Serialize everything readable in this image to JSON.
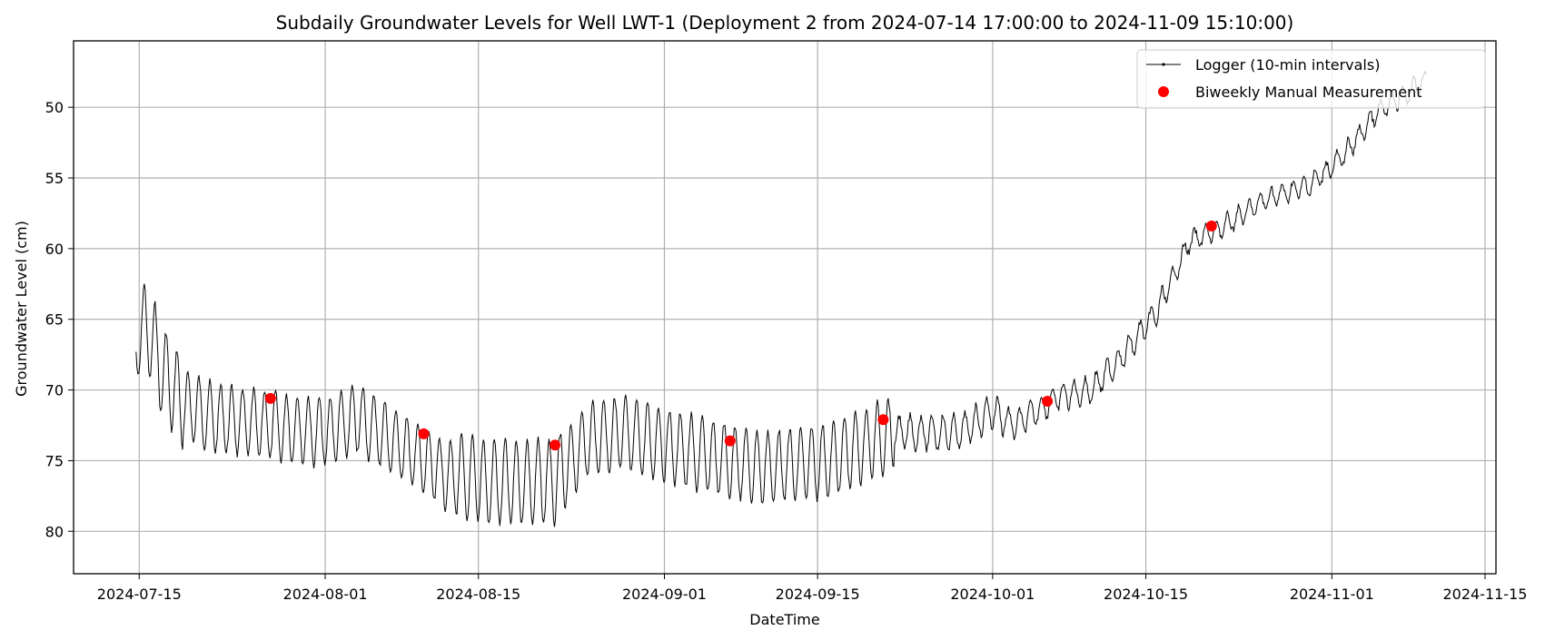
{
  "chart_data": {
    "type": "line",
    "title": "Subdaily Groundwater Levels for Well LWT-1 (Deployment 2 from 2024-07-14 17:00:00 to 2024-11-09 15:10:00)",
    "xlabel": "DateTime",
    "ylabel": "Groundwater Level (cm)",
    "x_axis": "date",
    "xlim": [
      "2024-07-09",
      "2024-11-16"
    ],
    "ylim": [
      83,
      45.3
    ],
    "y_inverted": true,
    "x_ticks": [
      "2024-07-15",
      "2024-08-01",
      "2024-08-15",
      "2024-09-01",
      "2024-09-15",
      "2024-10-01",
      "2024-10-15",
      "2024-11-01",
      "2024-11-15"
    ],
    "y_ticks": [
      50,
      55,
      60,
      65,
      70,
      75,
      80
    ],
    "grid": true,
    "legend_position": "top-right",
    "colors": {
      "logger": "#000000",
      "manual": "#ff0000"
    },
    "series": [
      {
        "name": "Logger (10-min intervals)",
        "kind": "line",
        "daily_oscillation": true,
        "points": [
          {
            "x": "2024-07-14 17:00",
            "y": 67.3
          },
          {
            "x": "2024-07-15",
            "y": 65.5
          },
          {
            "x": "2024-07-16",
            "y": 66.0
          },
          {
            "x": "2024-07-17",
            "y": 68.5
          },
          {
            "x": "2024-07-19",
            "y": 71.0
          },
          {
            "x": "2024-07-22",
            "y": 72.0
          },
          {
            "x": "2024-07-27",
            "y": 72.5
          },
          {
            "x": "2024-08-01",
            "y": 73.0
          },
          {
            "x": "2024-08-04",
            "y": 72.0
          },
          {
            "x": "2024-08-08",
            "y": 74.0
          },
          {
            "x": "2024-08-12",
            "y": 76.0
          },
          {
            "x": "2024-08-16",
            "y": 76.5
          },
          {
            "x": "2024-08-22",
            "y": 76.5
          },
          {
            "x": "2024-08-25",
            "y": 73.5
          },
          {
            "x": "2024-08-28",
            "y": 73.0
          },
          {
            "x": "2024-09-04",
            "y": 74.5
          },
          {
            "x": "2024-09-10",
            "y": 75.5
          },
          {
            "x": "2024-09-16",
            "y": 75.0
          },
          {
            "x": "2024-09-22",
            "y": 73.0
          },
          {
            "x": "2024-09-28",
            "y": 73.0
          },
          {
            "x": "2024-10-01",
            "y": 71.5
          },
          {
            "x": "2024-10-03",
            "y": 72.5
          },
          {
            "x": "2024-10-07",
            "y": 70.5
          },
          {
            "x": "2024-10-10",
            "y": 70.0
          },
          {
            "x": "2024-10-13",
            "y": 67.5
          },
          {
            "x": "2024-10-16",
            "y": 64.5
          },
          {
            "x": "2024-10-19",
            "y": 59.5
          },
          {
            "x": "2024-10-22",
            "y": 58.5
          },
          {
            "x": "2024-10-26",
            "y": 56.5
          },
          {
            "x": "2024-10-30",
            "y": 55.5
          },
          {
            "x": "2024-11-02",
            "y": 53.5
          },
          {
            "x": "2024-11-05",
            "y": 50.5
          },
          {
            "x": "2024-11-09 15:10",
            "y": 48.0
          }
        ]
      },
      {
        "name": "Biweekly Manual Measurement",
        "kind": "scatter",
        "points": [
          {
            "x": "2024-07-27",
            "y": 70.6
          },
          {
            "x": "2024-08-10",
            "y": 73.1
          },
          {
            "x": "2024-08-22",
            "y": 73.9
          },
          {
            "x": "2024-09-07",
            "y": 73.6
          },
          {
            "x": "2024-09-21",
            "y": 72.1
          },
          {
            "x": "2024-10-06",
            "y": 70.8
          },
          {
            "x": "2024-10-21",
            "y": 58.4
          }
        ]
      }
    ]
  }
}
